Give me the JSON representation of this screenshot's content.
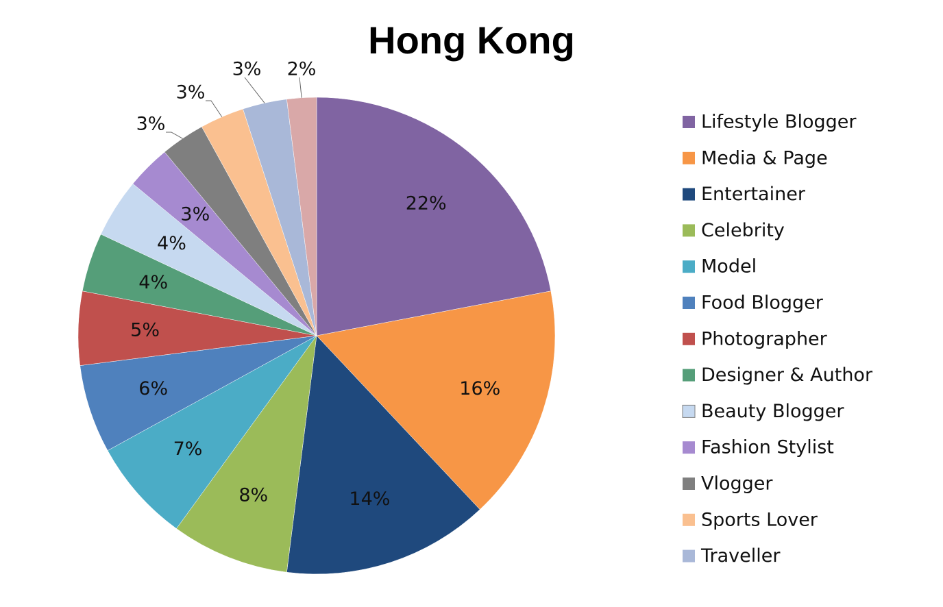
{
  "chart_data": {
    "type": "pie",
    "title": "Hong Kong",
    "legend_position": "right",
    "categories": [
      "Lifestyle Blogger",
      "Media & Page",
      "Entertainer",
      "Celebrity",
      "Model",
      "Food Blogger",
      "Photographer",
      "Designer & Author",
      "Beauty Blogger",
      "Fashion Stylist",
      "Vlogger",
      "Sports Lover",
      "Traveller",
      ""
    ],
    "values": [
      22,
      16,
      14,
      8,
      7,
      6,
      5,
      4,
      4,
      3,
      3,
      3,
      3,
      2
    ],
    "labels": [
      "22%",
      "16%",
      "14%",
      "8%",
      "7%",
      "6%",
      "5%",
      "4%",
      "4%",
      "3%",
      "3%",
      "3%",
      "3%",
      "2%"
    ],
    "colors": [
      "#8064a2",
      "#f79646",
      "#1f497d",
      "#9bbb59",
      "#4bacc6",
      "#4f81bd",
      "#c0504d",
      "#559e79",
      "#c6d9f0",
      "#a68ad0",
      "#7f7f7f",
      "#fac090",
      "#a9b8d8",
      "#d9a8a8"
    ],
    "legend": [
      "Lifestyle Blogger",
      "Media & Page",
      "Entertainer",
      "Celebrity",
      "Model",
      "Food Blogger",
      "Photographer",
      "Designer & Author",
      "Beauty Blogger",
      "Fashion Stylist",
      "Vlogger",
      "Sports Lover",
      "Traveller"
    ]
  }
}
